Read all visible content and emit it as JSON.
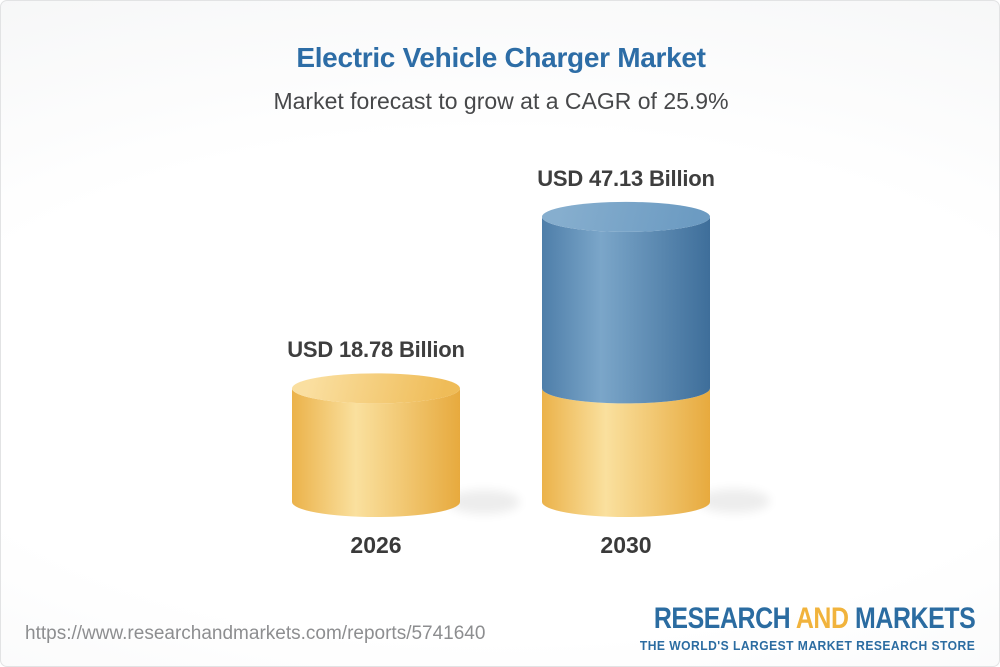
{
  "header": {
    "title": "Electric Vehicle Charger Market",
    "subtitle": "Market forecast to grow at a CAGR of 25.9%"
  },
  "chart_data": {
    "type": "bar",
    "variant": "3d-cylinder",
    "categories": [
      "2026",
      "2030"
    ],
    "values": [
      18.78,
      47.13
    ],
    "value_labels": [
      "USD 18.78 Billion",
      "USD 47.13 Billion"
    ],
    "series_note": "2030 cylinder is stacked: yellow base equals the 2026 value (18.78), blue section is growth up to 47.13",
    "unit": "USD Billion",
    "cagr_percent": 25.9,
    "title": "Electric Vehicle Charger Market",
    "subtitle": "Market forecast to grow at a CAGR of 25.9%",
    "ylim": [
      0,
      50
    ],
    "grid": false,
    "legend": false,
    "bar_colors": {
      "yellow": "#F5CE6E",
      "blue": "#5E8FB8"
    }
  },
  "footer": {
    "url": "https://www.researchandmarkets.com/reports/5741640",
    "logo": {
      "research": "RESEARCH",
      "and": "AND",
      "markets": "MARKETS",
      "tagline": "THE WORLD'S LARGEST MARKET RESEARCH STORE"
    }
  },
  "colors": {
    "title_blue": "#2D6DA6",
    "subtitle_gray": "#47484A",
    "label_gray": "#3E3E3E",
    "url_gray": "#8D8E90",
    "logo_blue": "#2B6CA1",
    "logo_gold": "#F1B33C",
    "yellow_body_edge": "#EBB24A",
    "yellow_body_light": "#FAE09E",
    "yellow_body_dark": "#E7AA3E",
    "yellow_top_light": "#FADFA0",
    "yellow_top_dark": "#EFBC58",
    "blue_body_edge": "#4E7EA9",
    "blue_body_light": "#7BA6C9",
    "blue_body_dark": "#3E6E9A",
    "blue_top_light": "#86AECE",
    "blue_top_dark": "#6C9BC2"
  }
}
